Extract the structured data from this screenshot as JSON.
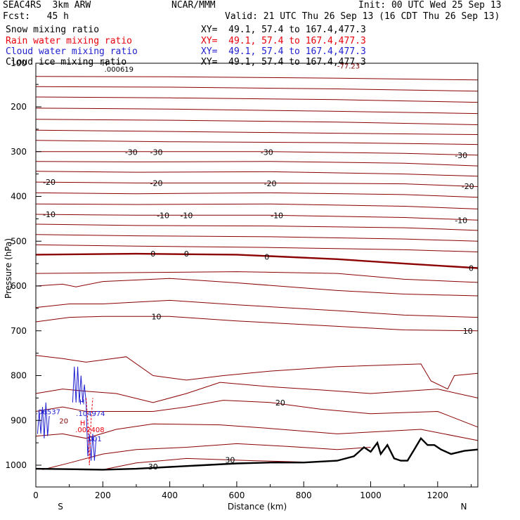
{
  "header": {
    "line1_left": "SEAC4RS  3km ARW",
    "line1_mid": "NCAR/MMM",
    "line1_right": "Init: 00 UTC Wed 25 Sep 13",
    "line2_left": "Fcst:   45 h",
    "line2_right": "Valid: 21 UTC Thu 26 Sep 13 (16 CDT Thu 26 Sep 13)",
    "fields": [
      {
        "label": "Snow mixing ratio",
        "xy": "XY=  49.1, 57.4 to 167.4,477.3",
        "color": "#000000"
      },
      {
        "label": "Rain water mixing ratio",
        "xy": "XY=  49.1, 57.4 to 167.4,477.3",
        "color": "#e8000b"
      },
      {
        "label": "Cloud water mixing ratio",
        "xy": "XY=  49.1, 57.4 to 167.4,477.3",
        "color": "#1f1fd0"
      },
      {
        "label": "Cloud ice mixing ratio",
        "xy": "XY=  49.1, 57.4 to 167.4,477.3",
        "color": "#000000"
      }
    ]
  },
  "chart_data": {
    "type": "cross-section contour",
    "xlabel": "Distance (km)",
    "ylabel": "Pressure (hPa)",
    "xlim": [
      0,
      1320
    ],
    "ylim_pressure": [
      1050,
      100
    ],
    "x_ticks": [
      0,
      200,
      400,
      600,
      800,
      1000,
      1200
    ],
    "y_ticks": [
      200,
      300,
      400,
      500,
      600,
      700,
      800,
      900,
      1000
    ],
    "y_top_label": "100",
    "endpoint_left": "S",
    "endpoint_right": "N",
    "temperature_contours": [
      {
        "p": [
          132,
          133,
          136,
          140
        ],
        "x": [
          0,
          400,
          900,
          1320
        ]
      },
      {
        "p": [
          155,
          156,
          160,
          165
        ],
        "x": [
          0,
          400,
          900,
          1320
        ]
      },
      {
        "p": [
          178,
          180,
          184,
          190
        ],
        "x": [
          0,
          400,
          900,
          1320
        ]
      },
      {
        "p": [
          203,
          205,
          210,
          215
        ],
        "x": [
          0,
          400,
          900,
          1320
        ]
      },
      {
        "p": [
          228,
          230,
          234,
          240
        ],
        "x": [
          0,
          400,
          900,
          1320
        ]
      },
      {
        "p": [
          252,
          255,
          259,
          262
        ],
        "x": [
          0,
          400,
          900,
          1320
        ]
      },
      {
        "p": [
          275,
          278,
          280,
          284
        ],
        "x": [
          0,
          400,
          900,
          1320
        ]
      },
      {
        "p": [
          300,
          300,
          300,
          304,
          308
        ],
        "x": [
          0,
          300,
          700,
          1100,
          1320
        ],
        "label": "-30"
      },
      {
        "p": [
          322,
          323,
          322,
          326,
          332
        ],
        "x": [
          0,
          300,
          700,
          1100,
          1320
        ]
      },
      {
        "p": [
          344,
          346,
          345,
          350,
          355
        ],
        "x": [
          0,
          300,
          700,
          1100,
          1320
        ]
      },
      {
        "p": [
          368,
          370,
          370,
          372,
          378
        ],
        "x": [
          0,
          300,
          700,
          1100,
          1320
        ],
        "label": "-20"
      },
      {
        "p": [
          392,
          394,
          392,
          396,
          402
        ],
        "x": [
          0,
          300,
          700,
          1100,
          1320
        ]
      },
      {
        "p": [
          417,
          418,
          417,
          422,
          428
        ],
        "x": [
          0,
          300,
          700,
          1100,
          1320
        ]
      },
      {
        "p": [
          440,
          442,
          442,
          447,
          453
        ],
        "x": [
          0,
          300,
          700,
          1100,
          1320
        ],
        "label": "-10"
      },
      {
        "p": [
          462,
          465,
          466,
          470,
          476
        ],
        "x": [
          0,
          300,
          700,
          1100,
          1320
        ]
      },
      {
        "p": [
          485,
          488,
          490,
          495,
          500
        ],
        "x": [
          0,
          300,
          700,
          1100,
          1320
        ]
      },
      {
        "p": [
          508,
          511,
          514,
          519,
          524
        ],
        "x": [
          0,
          300,
          700,
          1100,
          1320
        ]
      },
      {
        "p": [
          530,
          528,
          530,
          540,
          550,
          560
        ],
        "x": [
          0,
          300,
          600,
          900,
          1100,
          1320
        ],
        "label": "0",
        "bold": true
      },
      {
        "p": [
          572,
          570,
          568,
          572,
          585,
          592
        ],
        "x": [
          0,
          300,
          600,
          900,
          1100,
          1320
        ]
      },
      {
        "p": [
          600,
          596,
          602,
          590,
          583,
          593,
          610,
          618,
          622
        ],
        "x": [
          0,
          80,
          120,
          200,
          400,
          600,
          900,
          1100,
          1320
        ]
      },
      {
        "p": [
          648,
          640,
          640,
          632,
          642,
          655,
          665,
          670
        ],
        "x": [
          0,
          100,
          200,
          400,
          600,
          900,
          1100,
          1320
        ]
      },
      {
        "p": [
          680,
          670,
          668,
          668,
          678,
          690,
          698,
          700
        ],
        "x": [
          0,
          100,
          200,
          400,
          600,
          900,
          1100,
          1320
        ],
        "label": "10"
      },
      {
        "p": [
          755,
          762,
          770,
          758,
          800,
          810,
          800,
          790,
          780,
          774,
          812,
          830,
          800,
          795
        ],
        "x": [
          0,
          80,
          150,
          270,
          350,
          450,
          560,
          700,
          900,
          1150,
          1180,
          1230,
          1250,
          1320
        ]
      },
      {
        "p": [
          840,
          830,
          835,
          840,
          860,
          840,
          815,
          825,
          832,
          840,
          830,
          850
        ],
        "x": [
          0,
          80,
          150,
          240,
          350,
          450,
          550,
          700,
          850,
          1000,
          1200,
          1320
        ]
      },
      {
        "p": [
          880,
          870,
          880,
          880,
          880,
          870,
          855,
          860,
          875,
          885,
          880,
          915
        ],
        "x": [
          0,
          80,
          150,
          240,
          350,
          450,
          560,
          700,
          850,
          1000,
          1200,
          1320
        ],
        "label": "20"
      },
      {
        "p": [
          935,
          930,
          940,
          920,
          908,
          910,
          918,
          930,
          920,
          945
        ],
        "x": [
          0,
          80,
          150,
          240,
          350,
          550,
          700,
          900,
          1150,
          1320
        ]
      },
      {
        "p": [
          1010,
          995,
          975,
          965,
          960,
          952,
          958,
          965,
          960
        ],
        "x": [
          20,
          100,
          200,
          300,
          450,
          600,
          750,
          900,
          1000
        ]
      },
      {
        "p": [
          1010,
          995,
          985,
          990,
          993
        ],
        "x": [
          200,
          300,
          450,
          650,
          800
        ],
        "label": "30"
      }
    ],
    "terrain": {
      "x": [
        0,
        100,
        200,
        300,
        400,
        500,
        600,
        700,
        800,
        900,
        950,
        980,
        1000,
        1020,
        1030,
        1050,
        1070,
        1090,
        1110,
        1130,
        1150,
        1170,
        1190,
        1210,
        1240,
        1280,
        1320
      ],
      "p": [
        1008,
        1009,
        1010,
        1008,
        1004,
        1000,
        996,
        994,
        994,
        990,
        980,
        960,
        970,
        950,
        975,
        955,
        985,
        990,
        990,
        965,
        940,
        955,
        955,
        965,
        975,
        968,
        965
      ]
    },
    "cloud_water_blue": [
      {
        "x": [
          5,
          10,
          15,
          20,
          25,
          30,
          35,
          40
        ],
        "p": [
          930,
          880,
          930,
          870,
          940,
          860,
          935,
          890
        ]
      },
      {
        "x": [
          110,
          115,
          120,
          125,
          130,
          135,
          140,
          145,
          150,
          155,
          160,
          165,
          170,
          175,
          180
        ],
        "p": [
          860,
          780,
          860,
          780,
          860,
          800,
          860,
          820,
          860,
          980,
          930,
          990,
          930,
          990,
          940
        ]
      }
    ],
    "rain_water_red": [
      {
        "x": [
          150,
          155,
          160,
          165,
          170
        ],
        "p": [
          850,
          900,
          1000,
          900,
          850
        ]
      }
    ],
    "annotations": [
      {
        "text": "H",
        "x": 130,
        "p": 858,
        "color": "#1f1fd0"
      },
      {
        "text": ".104974",
        "x": 120,
        "p": 884,
        "color": "#1f1fd0"
      },
      {
        "text": ".06537",
        "x": 0,
        "p": 880,
        "color": "#1f1fd0"
      },
      {
        "text": "H",
        "x": 132,
        "p": 905,
        "color": "#e8000b"
      },
      {
        "text": ".002408",
        "x": 118,
        "p": 920,
        "color": "#e8000b"
      },
      {
        "text": ".001",
        "x": 150,
        "p": 940,
        "color": "#1f1fd0"
      },
      {
        "text": "20",
        "x": 70,
        "p": 900,
        "color": "#8b0000"
      },
      {
        "text": "H",
        "x": 198,
        "p": 102,
        "color": "#000000"
      },
      {
        "text": ".000619",
        "x": 205,
        "p": 115,
        "color": "#000000"
      },
      {
        "text": "-77.23",
        "x": 900,
        "p": 108,
        "color": "#8b0000"
      }
    ],
    "contour_labels": [
      {
        "text": "-30",
        "x": 285,
        "p": 301
      },
      {
        "text": "-30",
        "x": 360,
        "p": 301
      },
      {
        "text": "-30",
        "x": 690,
        "p": 301
      },
      {
        "text": "-30",
        "x": 1270,
        "p": 308
      },
      {
        "text": "-20",
        "x": 40,
        "p": 368
      },
      {
        "text": "-20",
        "x": 360,
        "p": 370
      },
      {
        "text": "-20",
        "x": 700,
        "p": 371
      },
      {
        "text": "-20",
        "x": 1290,
        "p": 377
      },
      {
        "text": "-10",
        "x": 40,
        "p": 440
      },
      {
        "text": "-10",
        "x": 380,
        "p": 442
      },
      {
        "text": "-10",
        "x": 450,
        "p": 442
      },
      {
        "text": "-10",
        "x": 720,
        "p": 442
      },
      {
        "text": "-10",
        "x": 1270,
        "p": 453
      },
      {
        "text": "0",
        "x": 350,
        "p": 528
      },
      {
        "text": "0",
        "x": 450,
        "p": 528
      },
      {
        "text": "0",
        "x": 690,
        "p": 535
      },
      {
        "text": "0",
        "x": 1300,
        "p": 560
      },
      {
        "text": "10",
        "x": 360,
        "p": 668
      },
      {
        "text": "10",
        "x": 1290,
        "p": 700
      },
      {
        "text": "20",
        "x": 730,
        "p": 860
      },
      {
        "text": "30",
        "x": 580,
        "p": 988
      },
      {
        "text": "30",
        "x": 350,
        "p": 1003
      }
    ],
    "colors": {
      "contour": "#8b0000",
      "cloud_water": "#1f1fd0",
      "rain_water": "#e8000b",
      "terrain": "#000000"
    }
  }
}
